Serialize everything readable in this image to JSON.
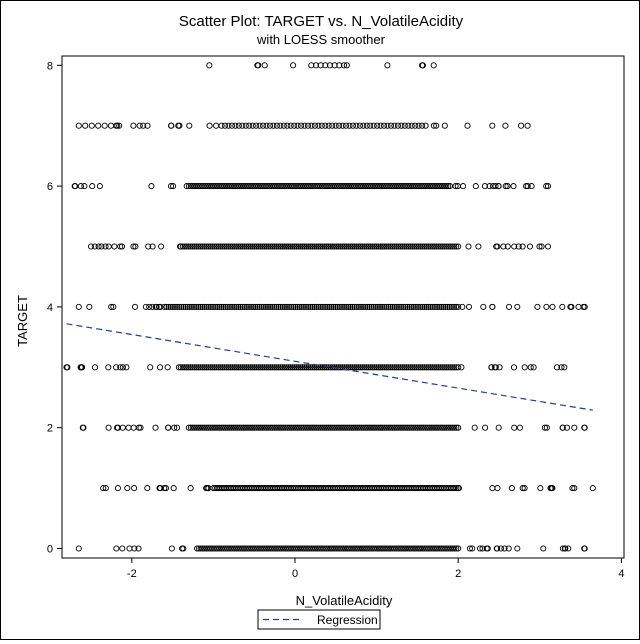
{
  "chart_data": {
    "type": "scatter",
    "title": "Scatter Plot: TARGET vs. N_VolatileAcidity",
    "subtitle": "with LOESS smoother",
    "xlabel": "N_VolatileAcidity",
    "ylabel": "TARGET",
    "xlim": [
      -2.8,
      4.0
    ],
    "ylim": [
      -0.1,
      8.2
    ],
    "x_ticks": [
      -2,
      0,
      2,
      4
    ],
    "y_ticks": [
      0,
      2,
      4,
      6,
      8
    ],
    "grid": false,
    "legend": "bottom-center",
    "series": [
      {
        "name": "",
        "kind": "scatter",
        "marker": "open-circle",
        "color": "#000000",
        "bands": [
          {
            "y": 0,
            "x_min": -2.65,
            "x_max": 3.55,
            "dense_min": -1.2,
            "dense_max": 2.0
          },
          {
            "y": 1,
            "x_min": -2.35,
            "x_max": 3.65,
            "dense_min": -1.0,
            "dense_max": 2.0
          },
          {
            "y": 2,
            "x_min": -2.6,
            "x_max": 3.55,
            "dense_min": -1.3,
            "dense_max": 2.0
          },
          {
            "y": 3,
            "x_min": -2.8,
            "x_max": 3.3,
            "dense_min": -1.4,
            "dense_max": 2.0
          },
          {
            "y": 4,
            "x_min": -2.65,
            "x_max": 3.55,
            "dense_min": -1.6,
            "dense_max": 2.0
          },
          {
            "y": 5,
            "x_min": -2.5,
            "x_max": 3.1,
            "dense_min": -1.4,
            "dense_max": 2.0
          },
          {
            "y": 6,
            "x_min": -2.7,
            "x_max": 3.1,
            "dense_min": -1.3,
            "dense_max": 1.9
          },
          {
            "y": 7,
            "x_min": -2.65,
            "x_max": 2.85,
            "dense_min": -0.9,
            "dense_max": 1.6
          },
          {
            "y": 8,
            "x_min": -1.05,
            "x_max": 1.7,
            "dense_min": 0.2,
            "dense_max": 0.6
          }
        ]
      },
      {
        "name": "Regression",
        "kind": "line",
        "style": "dashed",
        "color": "#1f3f8f",
        "x": [
          -2.8,
          3.65
        ],
        "y": [
          3.72,
          2.29
        ]
      }
    ]
  }
}
